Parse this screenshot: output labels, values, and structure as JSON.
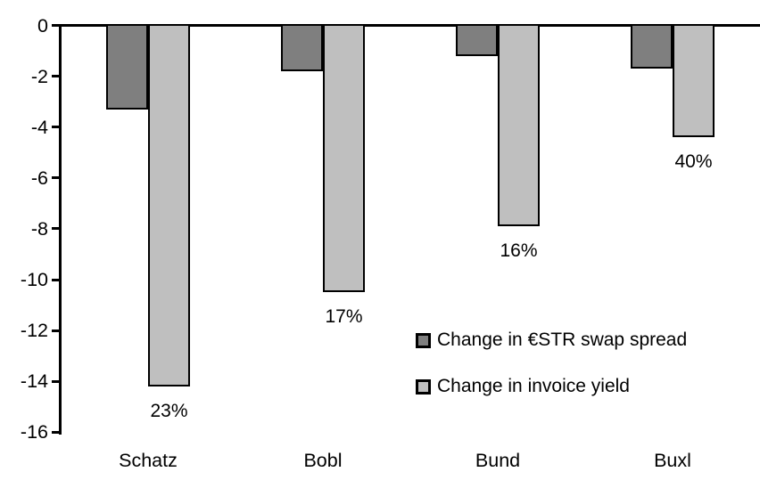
{
  "chart_data": {
    "type": "bar",
    "orientation": "vertical-negative",
    "title": "",
    "xlabel": "",
    "ylabel": "",
    "categories": [
      "Schatz",
      "Bobl",
      "Bund",
      "Buxl"
    ],
    "series": [
      {
        "name": "Change in €STR swap spread",
        "color": "#7f7f7f",
        "values": [
          -3.3,
          -1.8,
          -1.2,
          -1.7
        ]
      },
      {
        "name": "Change in invoice yield",
        "color": "#bfbfbf",
        "values": [
          -14.2,
          -10.5,
          -7.9,
          -4.4
        ],
        "labels": [
          "23%",
          "17%",
          "16%",
          "40%"
        ]
      }
    ],
    "ylim": [
      -16,
      0
    ],
    "yticks": [
      0,
      -2,
      -4,
      -6,
      -8,
      -10,
      -12,
      -14,
      -16
    ],
    "grid": false,
    "legend_position": "center-right",
    "bar_border_color": "#000000",
    "axis_color": "#000000",
    "background": "#ffffff"
  }
}
